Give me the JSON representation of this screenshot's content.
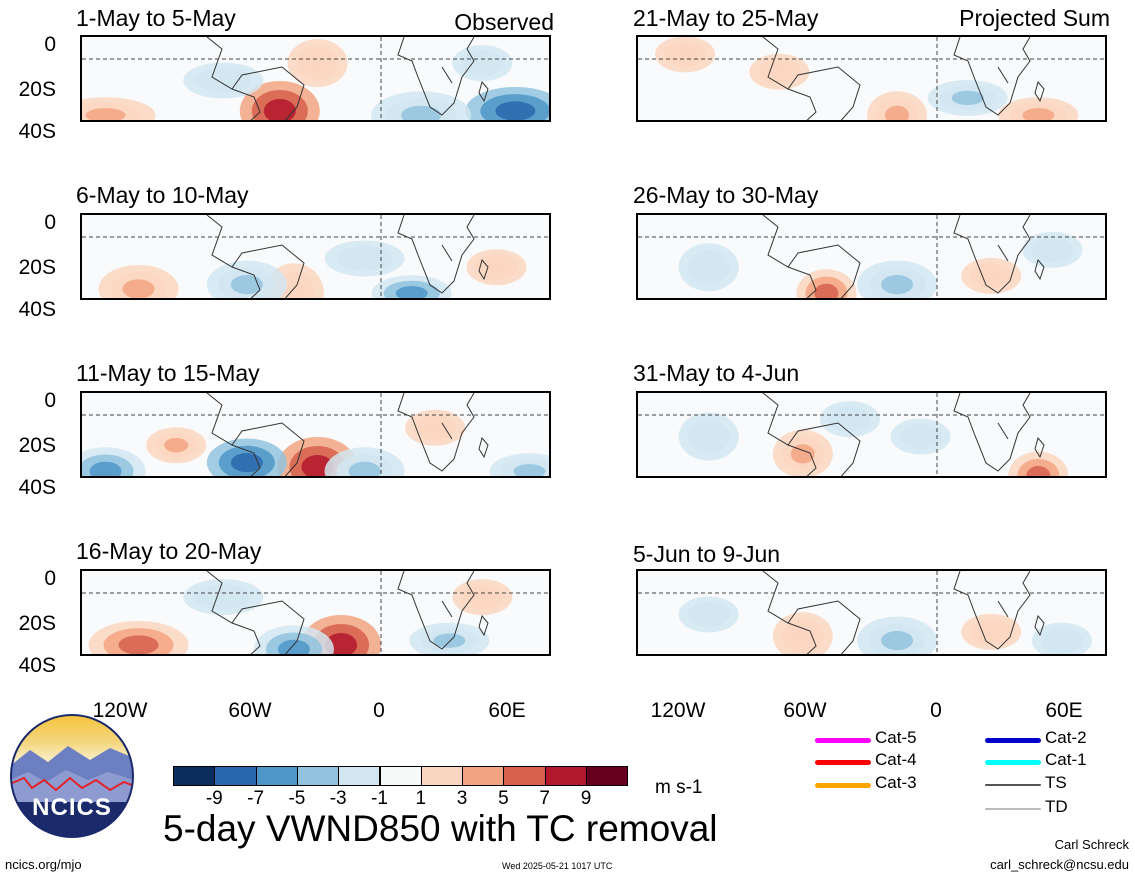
{
  "figure": {
    "main_title": "5-day VWND850 with TC removal",
    "units": "m s-1",
    "left_header": "Observed",
    "right_header": "Projected Sum"
  },
  "panels": {
    "left": [
      "1-May to 5-May",
      "6-May to 10-May",
      "11-May to 15-May",
      "16-May to 20-May"
    ],
    "right": [
      "21-May to 25-May",
      "26-May to 30-May",
      "31-May to 4-Jun",
      "5-Jun to 9-Jun"
    ]
  },
  "axes": {
    "y_labels": [
      "0",
      "20S",
      "40S"
    ],
    "x_labels": [
      "120W",
      "60W",
      "0",
      "60E"
    ]
  },
  "colorbar": {
    "labels": [
      "-9",
      "-7",
      "-5",
      "-3",
      "-1",
      "1",
      "3",
      "5",
      "7",
      "9"
    ],
    "colors": [
      "#0b2e5e",
      "#2a68ad",
      "#4e96c8",
      "#92c3de",
      "#d2e6f1",
      "#f7f9f9",
      "#fbd6c0",
      "#f3a482",
      "#d6604d",
      "#b2182b",
      "#67001f"
    ]
  },
  "tc_legend": {
    "items": [
      {
        "label": "Cat-5",
        "color": "#ff00ff"
      },
      {
        "label": "Cat-4",
        "color": "#ff0000"
      },
      {
        "label": "Cat-3",
        "color": "#ffa500"
      },
      {
        "label": "Cat-2",
        "color": "#0000cc"
      },
      {
        "label": "Cat-1",
        "color": "#00ffff"
      },
      {
        "label": "TS",
        "color": "#555555"
      },
      {
        "label": "TD",
        "color": "#bbbbbb"
      }
    ]
  },
  "logo": {
    "text": "NCICS"
  },
  "footer": {
    "site": "ncics.org/mjo",
    "timestamp": "Wed 2025-05-21 1017 UTC",
    "author": "Carl Schreck",
    "email": "carl_schreck@ncsu.edu"
  }
}
